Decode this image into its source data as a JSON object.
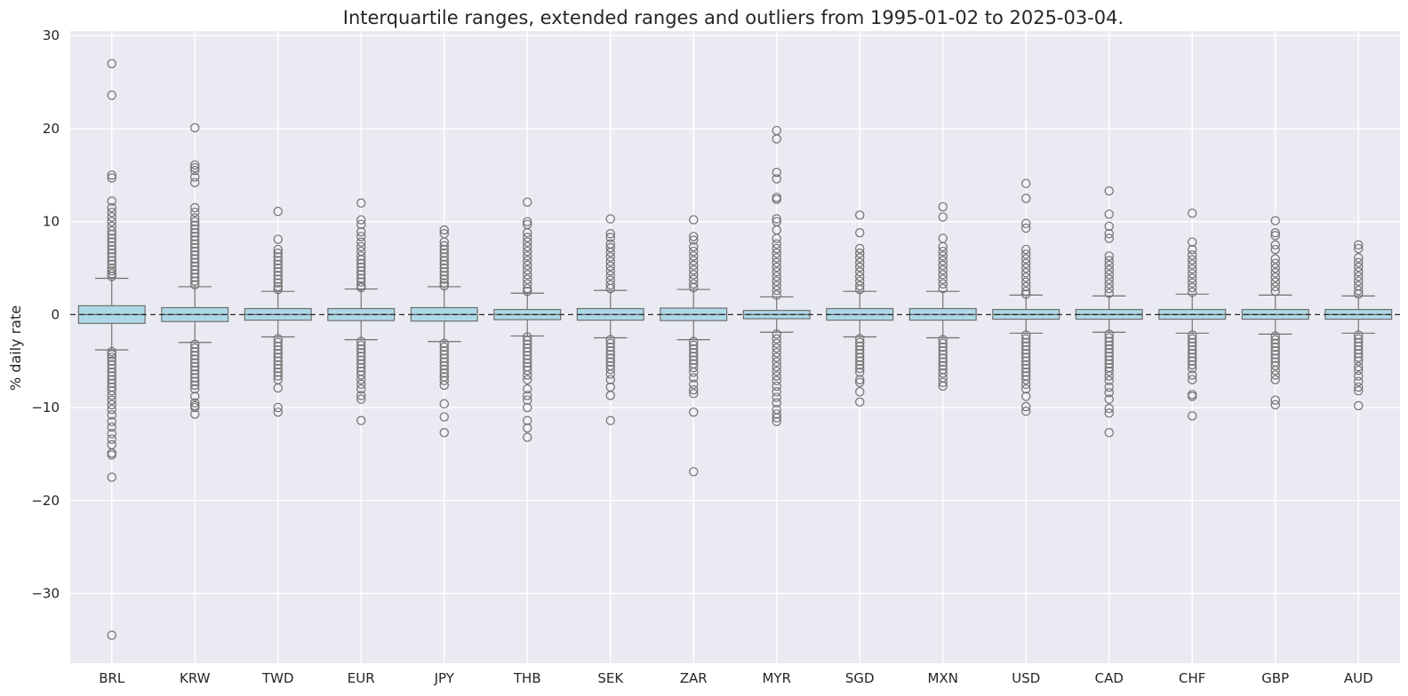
{
  "chart_data": {
    "type": "box",
    "title": "Interquartile ranges, extended ranges and outliers from 1995-01-02 to 2025-03-04.",
    "xlabel": "",
    "ylabel": "% daily rate",
    "ylim": [
      -37.5,
      30.5
    ],
    "yticks": [
      30,
      20,
      10,
      0,
      -10,
      -20,
      -30
    ],
    "ytick_labels": [
      "30",
      "20",
      "10",
      "0",
      "−10",
      "−20",
      "−30"
    ],
    "grid": true,
    "reference_line": {
      "y": 0,
      "style": "dashed"
    },
    "colors": {
      "box_fill": "#add8e6",
      "box_edge": "#707070",
      "background": "#eaeaf2",
      "grid": "#ffffff",
      "outlier": "#707070"
    },
    "categories": [
      "BRL",
      "KRW",
      "TWD",
      "EUR",
      "JPY",
      "THB",
      "SEK",
      "ZAR",
      "MYR",
      "SGD",
      "MXN",
      "USD",
      "CAD",
      "CHF",
      "GBP",
      "AUD"
    ],
    "boxes": [
      {
        "name": "BRL",
        "q1": -0.95,
        "median": 0.0,
        "q3": 0.95,
        "whisker_low": -3.8,
        "whisker_high": 3.9,
        "outliers": [
          27.0,
          23.6,
          15.0,
          14.7,
          12.2,
          11.5,
          11.0,
          10.5,
          10.0,
          9.5,
          9.0,
          8.6,
          8.2,
          7.8,
          7.4,
          7.0,
          6.6,
          6.2,
          5.8,
          5.4,
          5.0,
          4.7,
          4.4,
          4.1,
          -4.0,
          -4.3,
          -4.6,
          -5.0,
          -5.4,
          -5.8,
          -6.2,
          -6.6,
          -7.0,
          -7.4,
          -7.8,
          -8.2,
          -8.7,
          -9.2,
          -9.7,
          -10.2,
          -10.8,
          -11.5,
          -12.1,
          -12.8,
          -13.4,
          -14.0,
          -14.9,
          -15.1,
          -17.5,
          -34.5
        ]
      },
      {
        "name": "KRW",
        "q1": -0.75,
        "median": 0.0,
        "q3": 0.75,
        "whisker_low": -3.0,
        "whisker_high": 3.0,
        "outliers": [
          20.1,
          16.1,
          15.8,
          15.5,
          14.8,
          14.2,
          11.5,
          11.0,
          10.4,
          10.0,
          9.6,
          9.2,
          8.8,
          8.4,
          8.0,
          7.6,
          7.2,
          6.8,
          6.4,
          6.0,
          5.6,
          5.2,
          4.8,
          4.4,
          4.0,
          3.6,
          3.2,
          -3.2,
          -3.6,
          -4.0,
          -4.4,
          -4.8,
          -5.2,
          -5.6,
          -6.0,
          -6.4,
          -6.8,
          -7.2,
          -7.6,
          -8.0,
          -8.8,
          -9.5,
          -9.8,
          -10.0,
          -10.7
        ]
      },
      {
        "name": "TWD",
        "q1": -0.6,
        "median": 0.0,
        "q3": 0.65,
        "whisker_low": -2.4,
        "whisker_high": 2.5,
        "outliers": [
          11.1,
          8.1,
          7.0,
          6.6,
          6.2,
          5.8,
          5.4,
          5.0,
          4.6,
          4.2,
          3.8,
          3.4,
          3.0,
          2.7,
          -2.6,
          -3.0,
          -3.4,
          -3.8,
          -4.2,
          -4.6,
          -5.0,
          -5.4,
          -5.8,
          -6.2,
          -6.6,
          -7.0,
          -7.9,
          -10.0,
          -10.5
        ]
      },
      {
        "name": "EUR",
        "q1": -0.65,
        "median": 0.0,
        "q3": 0.65,
        "whisker_low": -2.7,
        "whisker_high": 2.75,
        "outliers": [
          12.0,
          10.2,
          9.7,
          8.9,
          8.4,
          7.8,
          7.3,
          6.8,
          6.3,
          5.9,
          5.5,
          5.1,
          4.7,
          4.3,
          3.9,
          3.5,
          3.1,
          2.9,
          -2.9,
          -3.3,
          -3.7,
          -4.1,
          -4.5,
          -4.9,
          -5.3,
          -5.7,
          -6.1,
          -6.5,
          -7.0,
          -7.5,
          -8.0,
          -8.7,
          -9.1,
          -11.4
        ]
      },
      {
        "name": "JPY",
        "q1": -0.7,
        "median": 0.0,
        "q3": 0.75,
        "whisker_low": -2.9,
        "whisker_high": 3.0,
        "outliers": [
          9.1,
          8.7,
          7.8,
          7.4,
          7.0,
          6.6,
          6.2,
          5.8,
          5.4,
          5.0,
          4.6,
          4.2,
          3.8,
          3.4,
          3.1,
          -3.1,
          -3.5,
          -3.9,
          -4.3,
          -4.7,
          -5.1,
          -5.5,
          -5.9,
          -6.3,
          -6.7,
          -7.1,
          -7.6,
          -9.6,
          -11.0,
          -12.7
        ]
      },
      {
        "name": "THB",
        "q1": -0.55,
        "median": 0.0,
        "q3": 0.55,
        "whisker_low": -2.3,
        "whisker_high": 2.3,
        "outliers": [
          12.1,
          10.0,
          9.7,
          8.8,
          8.3,
          7.8,
          7.3,
          6.8,
          6.3,
          5.8,
          5.3,
          4.8,
          4.3,
          3.8,
          3.3,
          2.8,
          2.5,
          -2.4,
          -2.8,
          -3.2,
          -3.6,
          -4.0,
          -4.4,
          -4.8,
          -5.2,
          -5.6,
          -6.0,
          -6.5,
          -7.0,
          -8.0,
          -8.7,
          -9.2,
          -10.0,
          -11.4,
          -12.2,
          -13.2
        ]
      },
      {
        "name": "SEK",
        "q1": -0.6,
        "median": 0.0,
        "q3": 0.65,
        "whisker_low": -2.5,
        "whisker_high": 2.6,
        "outliers": [
          10.3,
          8.7,
          8.3,
          7.6,
          7.2,
          6.7,
          6.2,
          5.7,
          5.2,
          4.7,
          4.2,
          3.7,
          3.2,
          2.8,
          -2.7,
          -3.1,
          -3.5,
          -3.9,
          -4.3,
          -4.7,
          -5.1,
          -5.5,
          -5.9,
          -6.4,
          -7.0,
          -7.8,
          -8.7,
          -11.4
        ]
      },
      {
        "name": "ZAR",
        "q1": -0.65,
        "median": 0.0,
        "q3": 0.7,
        "whisker_low": -2.7,
        "whisker_high": 2.7,
        "outliers": [
          10.2,
          8.4,
          8.0,
          7.3,
          6.8,
          6.3,
          5.8,
          5.3,
          4.8,
          4.3,
          3.8,
          3.3,
          2.9,
          -2.9,
          -3.3,
          -3.7,
          -4.1,
          -4.5,
          -4.9,
          -5.3,
          -5.7,
          -6.2,
          -6.8,
          -7.5,
          -8.1,
          -8.5,
          -10.5,
          -16.9
        ]
      },
      {
        "name": "MYR",
        "q1": -0.45,
        "median": 0.0,
        "q3": 0.45,
        "whisker_low": -1.9,
        "whisker_high": 1.9,
        "outliers": [
          19.8,
          18.9,
          15.3,
          14.6,
          12.6,
          12.4,
          10.3,
          10.0,
          9.1,
          8.2,
          7.6,
          7.1,
          6.6,
          6.1,
          5.6,
          5.1,
          4.6,
          4.1,
          3.6,
          3.1,
          2.6,
          2.1,
          -2.1,
          -2.6,
          -3.1,
          -3.6,
          -4.1,
          -4.6,
          -5.1,
          -5.6,
          -6.1,
          -6.6,
          -7.1,
          -7.7,
          -8.3,
          -8.9,
          -9.5,
          -10.2,
          -10.7,
          -11.1,
          -11.5
        ]
      },
      {
        "name": "SGD",
        "q1": -0.6,
        "median": 0.0,
        "q3": 0.65,
        "whisker_low": -2.4,
        "whisker_high": 2.5,
        "outliers": [
          10.7,
          8.8,
          7.1,
          6.6,
          6.1,
          5.6,
          5.1,
          4.6,
          4.1,
          3.6,
          3.1,
          2.7,
          -2.6,
          -3.0,
          -3.4,
          -3.8,
          -4.2,
          -4.6,
          -5.0,
          -5.4,
          -5.8,
          -6.2,
          -7.0,
          -7.3,
          -8.3,
          -9.4
        ]
      },
      {
        "name": "MXN",
        "q1": -0.6,
        "median": 0.0,
        "q3": 0.65,
        "whisker_low": -2.5,
        "whisker_high": 2.5,
        "outliers": [
          11.6,
          10.5,
          8.2,
          7.3,
          6.8,
          6.3,
          5.8,
          5.3,
          4.8,
          4.3,
          3.8,
          3.3,
          2.8,
          -2.7,
          -3.1,
          -3.5,
          -3.9,
          -4.3,
          -4.7,
          -5.1,
          -5.5,
          -5.9,
          -6.3,
          -6.8,
          -7.3,
          -7.7
        ]
      },
      {
        "name": "USD",
        "q1": -0.5,
        "median": 0.0,
        "q3": 0.55,
        "whisker_low": -2.0,
        "whisker_high": 2.1,
        "outliers": [
          14.1,
          12.5,
          9.8,
          9.3,
          7.0,
          6.5,
          6.0,
          5.5,
          5.0,
          4.5,
          4.0,
          3.5,
          3.0,
          2.5,
          2.2,
          -2.2,
          -2.6,
          -3.0,
          -3.4,
          -3.8,
          -4.2,
          -4.6,
          -5.0,
          -5.4,
          -5.8,
          -6.2,
          -6.6,
          -7.0,
          -7.5,
          -8.0,
          -8.8,
          -9.9,
          -10.4
        ]
      },
      {
        "name": "CAD",
        "q1": -0.5,
        "median": 0.0,
        "q3": 0.55,
        "whisker_low": -1.9,
        "whisker_high": 2.0,
        "outliers": [
          13.3,
          10.8,
          9.5,
          8.7,
          8.2,
          6.3,
          5.8,
          5.3,
          4.8,
          4.3,
          3.8,
          3.3,
          2.8,
          2.3,
          -2.1,
          -2.5,
          -2.9,
          -3.3,
          -3.7,
          -4.1,
          -4.5,
          -4.9,
          -5.3,
          -5.7,
          -6.1,
          -6.6,
          -7.1,
          -7.8,
          -8.4,
          -9.1,
          -10.1,
          -10.6,
          -12.7
        ]
      },
      {
        "name": "CHF",
        "q1": -0.5,
        "median": 0.0,
        "q3": 0.55,
        "whisker_low": -2.0,
        "whisker_high": 2.2,
        "outliers": [
          10.9,
          7.8,
          7.0,
          6.4,
          5.9,
          5.4,
          4.9,
          4.4,
          3.9,
          3.4,
          2.9,
          2.4,
          -2.2,
          -2.6,
          -3.0,
          -3.4,
          -3.8,
          -4.2,
          -4.6,
          -5.0,
          -5.4,
          -5.8,
          -6.5,
          -7.0,
          -8.6,
          -8.8,
          -10.9
        ]
      },
      {
        "name": "GBP",
        "q1": -0.5,
        "median": 0.0,
        "q3": 0.55,
        "whisker_low": -2.1,
        "whisker_high": 2.1,
        "outliers": [
          10.1,
          8.8,
          8.5,
          7.5,
          7.0,
          6.0,
          5.5,
          5.0,
          4.5,
          4.0,
          3.5,
          3.0,
          2.5,
          -2.3,
          -2.7,
          -3.1,
          -3.5,
          -3.9,
          -4.3,
          -4.7,
          -5.1,
          -5.5,
          -6.0,
          -6.5,
          -7.0,
          -9.2,
          -9.7
        ]
      },
      {
        "name": "AUD",
        "q1": -0.5,
        "median": 0.0,
        "q3": 0.55,
        "whisker_low": -2.0,
        "whisker_high": 2.0,
        "outliers": [
          7.5,
          7.1,
          6.1,
          5.6,
          5.1,
          4.6,
          4.1,
          3.6,
          3.1,
          2.6,
          2.2,
          -2.2,
          -2.6,
          -3.0,
          -3.4,
          -3.8,
          -4.2,
          -4.6,
          -5.0,
          -5.6,
          -6.0,
          -6.6,
          -7.2,
          -7.8,
          -8.2,
          -9.8
        ]
      }
    ]
  }
}
